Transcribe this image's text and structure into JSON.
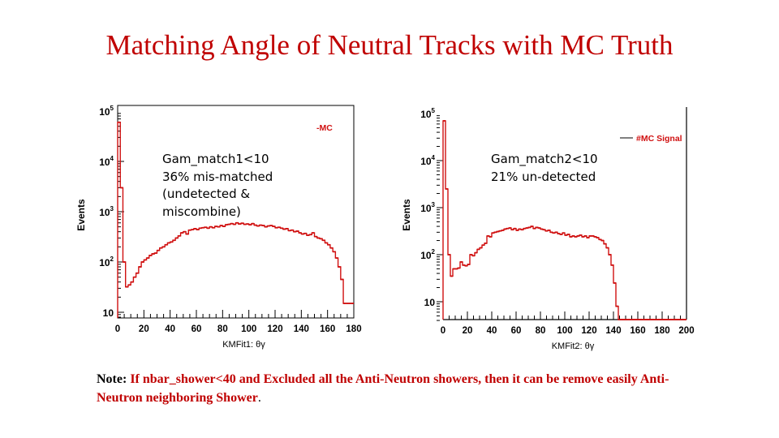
{
  "title": "Matching Angle of Neutral Tracks with MC Truth",
  "note": {
    "label": "Note:",
    "text": "If nbar_shower<40 and Excluded all the Anti-Neutron showers, then it can be remove easily Anti-Neutron neighboring Shower",
    "end": "."
  },
  "colors": {
    "title": "#c00000",
    "series": "#d01010"
  },
  "chart_data": [
    {
      "type": "bar",
      "histogram": true,
      "xlabel": "KMFit1: θγ",
      "ylabel": "Events",
      "yscale": "log",
      "xlim": [
        0,
        180
      ],
      "ylim": [
        8,
        100000
      ],
      "xticks": [
        "0",
        "20",
        "40",
        "60",
        "80",
        "100",
        "120",
        "140",
        "160",
        "180"
      ],
      "yticks": [
        {
          "base": "10",
          "exp": "5"
        },
        {
          "base": "10",
          "exp": "4"
        },
        {
          "base": "10",
          "exp": "3"
        },
        {
          "base": "10",
          "exp": "2"
        },
        {
          "base": "10",
          "exp": ""
        }
      ],
      "legend": {
        "label": "-MC",
        "position": "top-right"
      },
      "annotation": [
        "Gam_match1<10",
        "36% mis-matched",
        "(undetected &",
        "miscombine)"
      ],
      "bin_width": 2,
      "values": [
        60000,
        3000,
        100,
        32,
        35,
        40,
        50,
        60,
        80,
        100,
        110,
        120,
        135,
        145,
        150,
        170,
        190,
        200,
        220,
        240,
        250,
        270,
        300,
        330,
        380,
        400,
        360,
        430,
        440,
        460,
        440,
        470,
        480,
        490,
        470,
        500,
        480,
        510,
        500,
        530,
        510,
        550,
        560,
        580,
        560,
        600,
        570,
        590,
        560,
        570,
        550,
        580,
        540,
        520,
        540,
        530,
        500,
        520,
        530,
        510,
        480,
        490,
        470,
        450,
        460,
        420,
        430,
        400,
        410,
        380,
        360,
        370,
        340,
        350,
        380,
        320,
        300,
        290,
        270,
        240,
        220,
        190,
        160,
        120,
        80,
        45,
        15,
        15,
        15,
        15
      ]
    },
    {
      "type": "bar",
      "histogram": true,
      "xlabel": "KMFit2: θγ",
      "ylabel": "Events",
      "yscale": "log",
      "xlim": [
        0,
        200
      ],
      "ylim": [
        4,
        100000
      ],
      "xticks": [
        "0",
        "20",
        "40",
        "60",
        "80",
        "100",
        "120",
        "140",
        "160",
        "180",
        "200"
      ],
      "yticks": [
        {
          "base": "10",
          "exp": "5"
        },
        {
          "base": "10",
          "exp": "4"
        },
        {
          "base": "10",
          "exp": "3"
        },
        {
          "base": "10",
          "exp": "2"
        },
        {
          "base": "10",
          "exp": ""
        }
      ],
      "legend": {
        "label": "#MC Signal",
        "position": "top-right"
      },
      "annotation": [
        "Gam_match2<10",
        "21% un-detected"
      ],
      "bin_width": 2,
      "values": [
        70000,
        2500,
        100,
        35,
        50,
        50,
        52,
        70,
        60,
        58,
        62,
        100,
        95,
        110,
        130,
        140,
        160,
        175,
        250,
        240,
        290,
        300,
        310,
        320,
        330,
        350,
        360,
        370,
        340,
        360,
        330,
        350,
        340,
        360,
        370,
        380,
        400,
        360,
        380,
        370,
        350,
        340,
        320,
        330,
        300,
        290,
        300,
        280,
        270,
        290,
        260,
        270,
        240,
        250,
        240,
        250,
        260,
        240,
        250,
        230,
        250,
        250,
        240,
        230,
        210,
        200,
        170,
        140,
        100,
        60,
        25,
        8,
        4,
        4,
        4,
        4,
        4,
        4,
        4,
        4,
        4,
        4,
        4,
        4,
        4,
        4,
        4,
        4,
        4,
        4,
        4,
        4,
        4,
        4,
        4,
        4,
        4,
        4,
        4,
        4
      ]
    }
  ]
}
